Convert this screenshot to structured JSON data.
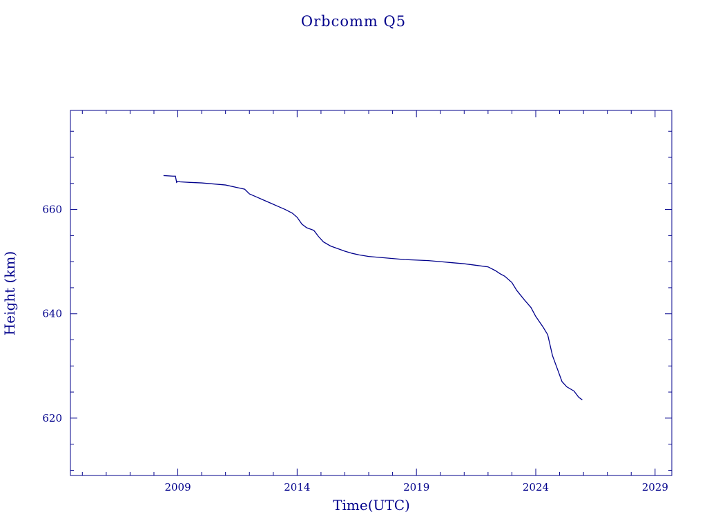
{
  "colors": {
    "ink": "#00008B",
    "background": "#ffffff"
  },
  "chart_data": {
    "type": "line",
    "title": "Orbcomm Q5",
    "xlabel": "Time(UTC)",
    "ylabel": "Height (km)",
    "xlim": [
      2004.5,
      2029.7
    ],
    "ylim": [
      609,
      679
    ],
    "x_ticks": [
      2009,
      2014,
      2019,
      2024,
      2029
    ],
    "x_tick_labels": [
      "2009",
      "2014",
      "2019",
      "2024",
      "2029"
    ],
    "y_ticks": [
      620,
      640,
      660
    ],
    "y_tick_labels": [
      "620",
      "640",
      "660"
    ],
    "grid": false,
    "legend": "none",
    "series": [
      {
        "x": [
          2008.4,
          2008.8,
          2008.9,
          2008.95,
          2009.0,
          2009.1,
          2009.5,
          2010.0,
          2010.5,
          2011.0,
          2011.5,
          2011.8,
          2012.0,
          2012.3,
          2012.6,
          2012.9,
          2013.2,
          2013.5,
          2013.8,
          2014.0,
          2014.2,
          2014.4,
          2014.7,
          2014.9,
          2015.1,
          2015.4,
          2015.7,
          2016.0,
          2016.3,
          2016.6,
          2017.0,
          2017.5,
          2018.0,
          2018.5,
          2019.0,
          2019.5,
          2020.0,
          2020.5,
          2021.0,
          2021.5,
          2022.0,
          2022.3,
          2022.5,
          2022.7,
          2023.0,
          2023.2,
          2023.5,
          2023.8,
          2024.0,
          2024.3,
          2024.5,
          2024.7,
          2024.9,
          2025.1,
          2025.3,
          2025.6,
          2025.8,
          2025.95
        ],
        "values": [
          666.5,
          666.4,
          666.4,
          665.2,
          665.4,
          665.3,
          665.2,
          665.1,
          664.9,
          664.7,
          664.2,
          663.9,
          663.0,
          662.4,
          661.8,
          661.2,
          660.6,
          660.0,
          659.3,
          658.5,
          657.2,
          656.5,
          656.0,
          654.8,
          653.8,
          653.0,
          652.5,
          652.0,
          651.6,
          651.3,
          651.0,
          650.8,
          650.6,
          650.4,
          650.3,
          650.2,
          650.0,
          649.8,
          649.6,
          649.3,
          649.0,
          648.3,
          647.7,
          647.2,
          646.0,
          644.5,
          642.8,
          641.2,
          639.5,
          637.5,
          636.0,
          632.0,
          629.5,
          627.0,
          626.0,
          625.2,
          624.0,
          623.5
        ]
      }
    ]
  }
}
